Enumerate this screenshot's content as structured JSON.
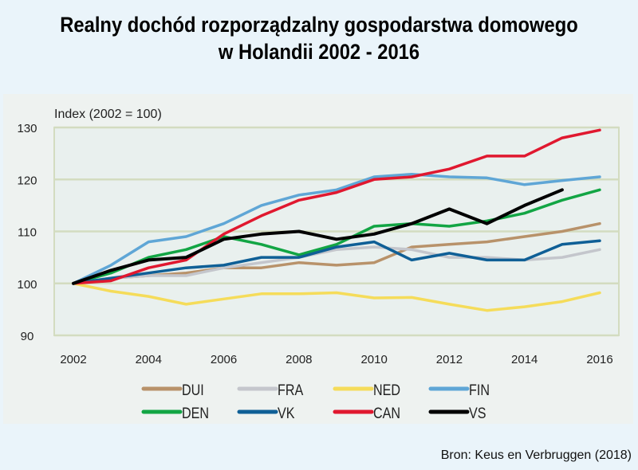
{
  "title": {
    "line1": "Realny dochód rozporządzalny gospodarstwa domowego",
    "line2": "w Holandii 2002 - 2016"
  },
  "source": "Bron: Keus en Verbruggen (2018)",
  "chart_data": {
    "type": "line",
    "ylabel": "Index (2002 = 100)",
    "ylim": [
      90,
      130
    ],
    "yticks": [
      90,
      100,
      110,
      120,
      130
    ],
    "xlim": [
      2002,
      2016
    ],
    "xticks": [
      2002,
      2004,
      2006,
      2008,
      2010,
      2012,
      2014,
      2016
    ],
    "grid": "horizontal",
    "legend_position": "bottom",
    "x": [
      2002,
      2003,
      2004,
      2005,
      2006,
      2007,
      2008,
      2009,
      2010,
      2011,
      2012,
      2013,
      2014,
      2015,
      2016
    ],
    "series": [
      {
        "name": "DUI",
        "color": "#b8926a",
        "values": [
          100,
          101,
          101.5,
          102,
          103,
          103,
          104,
          103.5,
          104,
          107,
          107.5,
          108,
          109,
          110,
          111.5
        ]
      },
      {
        "name": "FRA",
        "color": "#c4c6cc",
        "values": [
          100,
          101,
          101.5,
          101.5,
          103,
          104,
          105,
          106.5,
          107,
          106.5,
          105,
          105,
          104.5,
          105,
          106.5
        ]
      },
      {
        "name": "NED",
        "color": "#f5dc5a",
        "values": [
          100,
          98.5,
          97.5,
          96,
          97,
          98,
          98,
          98.2,
          97.2,
          97.3,
          96,
          94.8,
          95.5,
          96.5,
          98.2
        ]
      },
      {
        "name": "FIN",
        "color": "#5fa6d6",
        "values": [
          100,
          103.5,
          108,
          109,
          111.5,
          115,
          117,
          118,
          120.5,
          121,
          120.5,
          120.3,
          119,
          119.8,
          120.5
        ]
      },
      {
        "name": "DEN",
        "color": "#12a544",
        "values": [
          100,
          102,
          105,
          106.5,
          109,
          107.5,
          105.5,
          107.5,
          111,
          111.5,
          111,
          112,
          113.5,
          116,
          118
        ]
      },
      {
        "name": "VK",
        "color": "#0f5f96",
        "values": [
          100,
          101,
          102,
          103,
          103.5,
          105,
          105,
          107,
          108,
          104.5,
          105.8,
          104.5,
          104.5,
          107.5,
          108.2
        ]
      },
      {
        "name": "CAN",
        "color": "#e0182f",
        "values": [
          100,
          100.5,
          103,
          104.5,
          109.5,
          113,
          116,
          117.5,
          120,
          120.5,
          122,
          124.5,
          124.5,
          128,
          129.5
        ]
      },
      {
        "name": "VS",
        "color": "#000000",
        "values": [
          100,
          102.5,
          104.5,
          105,
          108.5,
          109.5,
          110,
          108.5,
          109.5,
          111.5,
          114.3,
          111.5,
          115,
          118,
          null
        ]
      }
    ]
  }
}
